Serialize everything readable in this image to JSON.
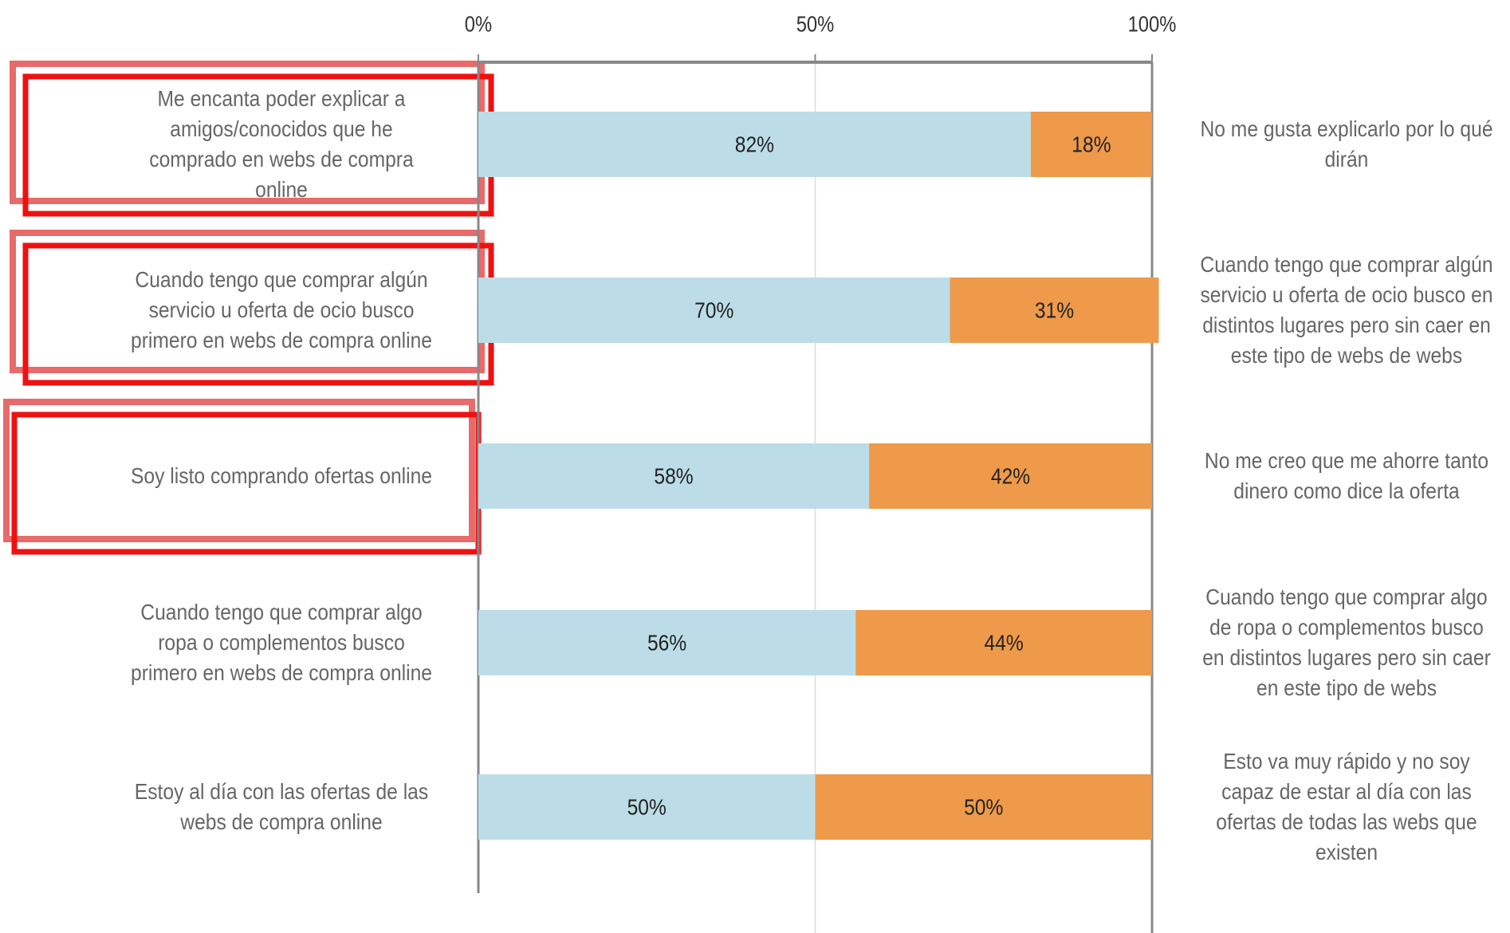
{
  "chart_data": {
    "type": "stacked_barh",
    "categories": [
      "Me encanta poder explicar a amigos/conocidos que he comprado en webs de compra online",
      "Cuando tengo que comprar algún servicio u oferta de ocio busco primero en webs de compra online",
      "Soy listo comprando ofertas online",
      "Cuando tengo que comprar algo ropa o complementos busco primero en webs de compra online",
      "Estoy al día con las ofertas de las webs de compra online"
    ],
    "right_labels": [
      "No me gusta explicarlo por lo qué dirán",
      "Cuando tengo que comprar algún servicio u oferta de ocio busco en distintos lugares pero sin caer en este tipo de webs de webs",
      "No me creo que me ahorre tanto dinero como dice la oferta",
      "Cuando tengo que comprar algo de ropa o complementos busco en distintos lugares pero sin caer en este tipo de webs",
      "Esto va muy rápido y no soy capaz de estar al día con las ofertas de todas las webs que existen"
    ],
    "series": [
      {
        "color": "#bcdde8",
        "values": [
          82,
          70,
          58,
          56,
          50
        ],
        "value_labels": [
          "82%",
          "70%",
          "58%",
          "56%",
          "50%"
        ]
      },
      {
        "color": "#ee9a4a",
        "values": [
          18,
          31,
          42,
          44,
          50
        ],
        "value_labels": [
          "18%",
          "31%",
          "42%",
          "44%",
          "50%"
        ]
      }
    ],
    "xlim": [
      0,
      100
    ],
    "xticks": [
      {
        "value": 0,
        "label": "0%"
      },
      {
        "value": 50,
        "label": "50%"
      },
      {
        "value": 100,
        "label": "100%"
      }
    ],
    "grid": true
  }
}
